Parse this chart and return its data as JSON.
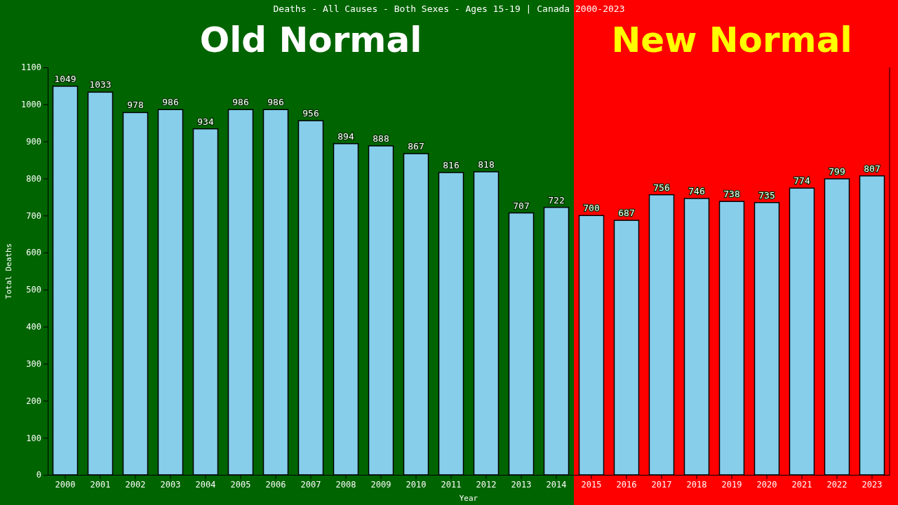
{
  "chart_data": {
    "type": "bar",
    "title": "Deaths - All Causes - Both Sexes - Ages 15-19 | Canada 2000-2023",
    "xlabel": "Year",
    "ylabel": "Total Deaths",
    "categories": [
      "2000",
      "2001",
      "2002",
      "2003",
      "2004",
      "2005",
      "2006",
      "2007",
      "2008",
      "2009",
      "2010",
      "2011",
      "2012",
      "2013",
      "2014",
      "2015",
      "2016",
      "2017",
      "2018",
      "2019",
      "2020",
      "2021",
      "2022",
      "2023"
    ],
    "values": [
      1049,
      1033,
      978,
      986,
      934,
      986,
      986,
      956,
      894,
      888,
      867,
      816,
      818,
      707,
      722,
      700,
      687,
      756,
      746,
      738,
      735,
      774,
      799,
      807
    ],
    "color": "#87ceeb",
    "data_labels": true,
    "ylim": [
      0,
      1100
    ],
    "yticks": [
      0,
      100,
      200,
      300,
      400,
      500,
      600,
      700,
      800,
      900,
      1000,
      1100
    ],
    "grid": false,
    "bands": [
      {
        "axis": "x",
        "from": "2000",
        "to": "2014",
        "label": "Old Normal",
        "color": "#006400"
      },
      {
        "axis": "x",
        "from": "2015",
        "to": "2023",
        "label": "New Normal",
        "color": "#ff0000"
      }
    ]
  }
}
